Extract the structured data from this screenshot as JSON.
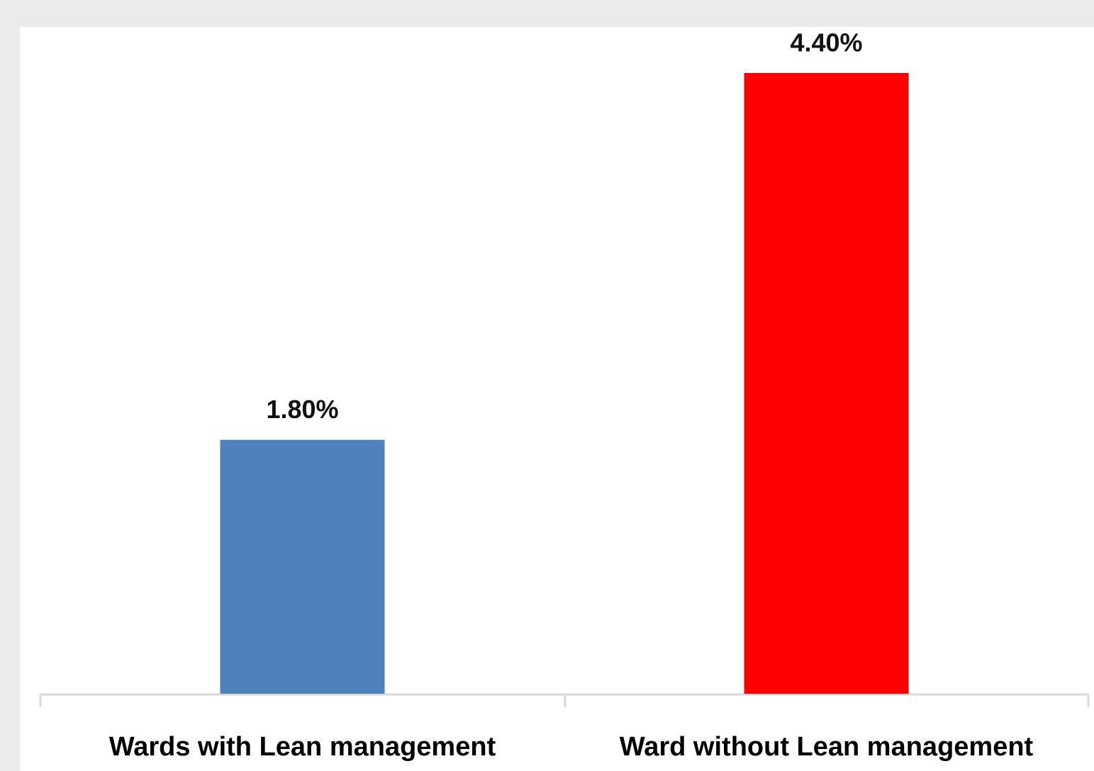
{
  "chart_data": {
    "type": "bar",
    "categories": [
      "Wards with Lean management",
      "Ward without Lean management"
    ],
    "values": [
      1.8,
      4.4
    ],
    "value_labels": [
      "1.80%",
      "4.40%"
    ],
    "colors": [
      "#4f81bd",
      "#ff0000"
    ]
  }
}
